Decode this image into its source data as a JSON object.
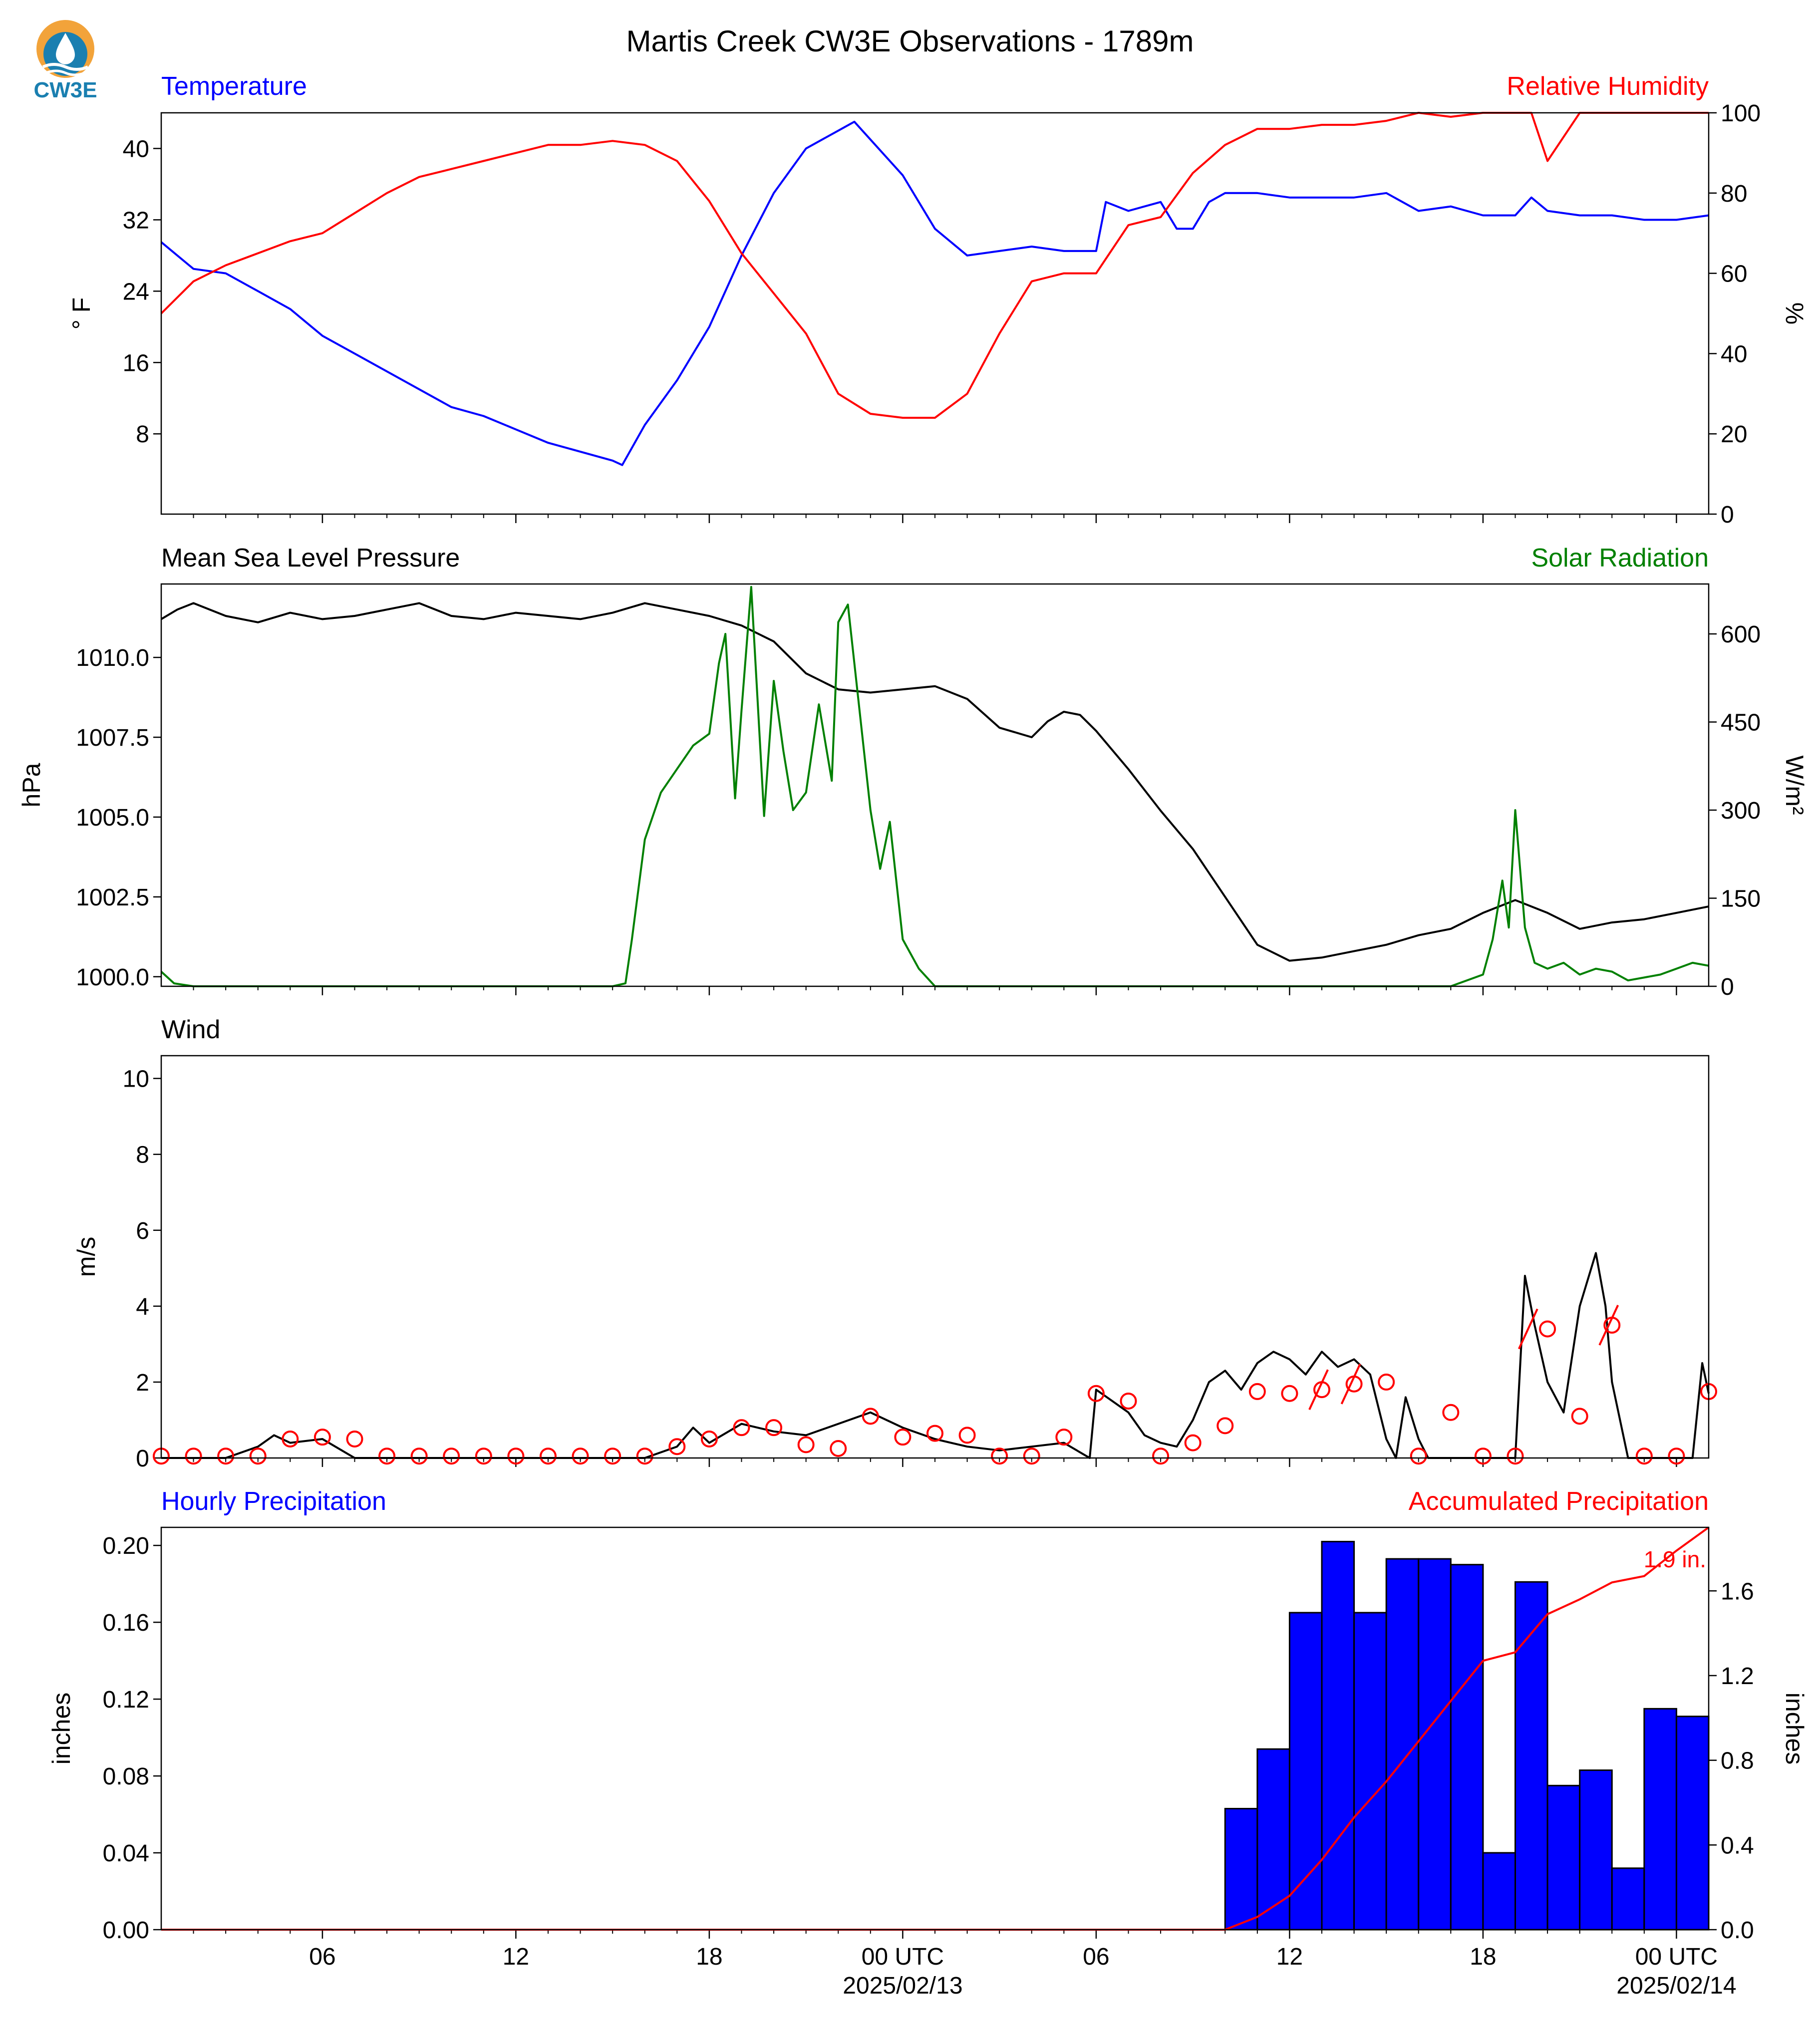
{
  "title": "Martis Creek CW3E Observations - 1789m",
  "logo": {
    "text": "CW3E",
    "icon": "water-drop-sun-icon",
    "colors": [
      "#f2a33a",
      "#1a7fb0"
    ]
  },
  "time_axis": {
    "start_hour": 0,
    "end_hour": 48,
    "tick_labels": [
      {
        "hour": 5,
        "label": "06"
      },
      {
        "hour": 11,
        "label": "12"
      },
      {
        "hour": 17,
        "label": "18"
      },
      {
        "hour": 23,
        "label": "00 UTC",
        "date": "2025/02/13"
      },
      {
        "hour": 29,
        "label": "06"
      },
      {
        "hour": 35,
        "label": "12"
      },
      {
        "hour": 41,
        "label": "18"
      },
      {
        "hour": 47,
        "label": "00 UTC",
        "date": "2025/02/14"
      }
    ]
  },
  "chart_data": [
    {
      "type": "line",
      "id": "temp_rh",
      "left_title": "Temperature",
      "right_title": "Relative Humidity",
      "ylabel_left": "° F",
      "ylabel_right": "%",
      "ylim_left": [
        -1,
        44
      ],
      "yticks_left": [
        8,
        16,
        24,
        32,
        40
      ],
      "ylim_right": [
        0,
        100
      ],
      "yticks_right": [
        0,
        20,
        40,
        60,
        80,
        100
      ],
      "series": [
        {
          "color": "#0000ff",
          "axis": "left",
          "x": [
            0,
            1,
            2,
            3,
            4,
            5,
            6,
            7,
            8,
            9,
            10,
            11,
            12,
            13,
            14,
            14.3,
            15,
            16,
            17,
            18,
            19,
            20,
            21,
            21.5,
            22,
            23,
            24,
            25,
            26,
            27,
            28,
            29,
            29.3,
            30,
            31,
            31.5,
            32,
            32.5,
            33,
            34,
            35,
            36,
            37,
            38,
            39,
            40,
            41,
            42,
            42.5,
            43,
            44,
            45,
            46,
            47,
            48
          ],
          "y": [
            29.5,
            26.5,
            26,
            24,
            22,
            19,
            17,
            15,
            13,
            11,
            10,
            8.5,
            7,
            6,
            5,
            4.5,
            9,
            14,
            20,
            28,
            35,
            40,
            42,
            43,
            41,
            37,
            31,
            28,
            28.5,
            29,
            28.5,
            28.5,
            34,
            33,
            34,
            31,
            31,
            34,
            35,
            35,
            34.5,
            34.5,
            34.5,
            35,
            33,
            33.5,
            32.5,
            32.5,
            34.5,
            33,
            32.5,
            32.5,
            32,
            32,
            32.5
          ]
        },
        {
          "color": "#ff0000",
          "axis": "right",
          "x": [
            0,
            1,
            2,
            3,
            4,
            5,
            6,
            7,
            8,
            9,
            10,
            11,
            12,
            13,
            14,
            15,
            16,
            17,
            18,
            19,
            20,
            21,
            22,
            23,
            24,
            25,
            26,
            27,
            28,
            29,
            30,
            31,
            32,
            33,
            34,
            35,
            36,
            37,
            38,
            39,
            40,
            41,
            42,
            42.5,
            43,
            44,
            45,
            46,
            47,
            48
          ],
          "y": [
            50,
            58,
            62,
            65,
            68,
            70,
            75,
            80,
            84,
            86,
            88,
            90,
            92,
            92,
            93,
            92,
            88,
            78,
            65,
            55,
            45,
            30,
            25,
            24,
            24,
            30,
            45,
            58,
            60,
            60,
            72,
            74,
            85,
            92,
            96,
            96,
            97,
            97,
            98,
            100,
            99,
            100,
            100,
            100,
            88,
            100,
            100,
            100,
            100,
            100
          ]
        }
      ]
    },
    {
      "type": "line",
      "id": "pressure_solar",
      "left_title": "Mean Sea Level Pressure",
      "right_title": "Solar Radiation",
      "ylabel_left": "hPa",
      "ylabel_right": "W/m²",
      "ylim_left": [
        999.7,
        1012.3
      ],
      "yticks_left": [
        1000.0,
        1002.5,
        1005.0,
        1007.5,
        1010.0
      ],
      "ylim_right": [
        0,
        685
      ],
      "yticks_right": [
        0,
        150,
        300,
        450,
        600
      ],
      "series": [
        {
          "color": "#000000",
          "axis": "left",
          "x": [
            0,
            0.5,
            1,
            2,
            3,
            4,
            5,
            6,
            7,
            8,
            9,
            10,
            11,
            12,
            13,
            14,
            15,
            16,
            17,
            18,
            19,
            20,
            21,
            22,
            23,
            24,
            25,
            26,
            27,
            27.5,
            28,
            28.5,
            29,
            30,
            31,
            32,
            33,
            34,
            35,
            36,
            37,
            38,
            39,
            40,
            41,
            42,
            43,
            44,
            45,
            46,
            47,
            48
          ],
          "y": [
            1011.2,
            1011.5,
            1011.7,
            1011.3,
            1011.1,
            1011.4,
            1011.2,
            1011.3,
            1011.5,
            1011.7,
            1011.3,
            1011.2,
            1011.4,
            1011.3,
            1011.2,
            1011.4,
            1011.7,
            1011.5,
            1011.3,
            1011.0,
            1010.5,
            1009.5,
            1009.0,
            1008.9,
            1009.0,
            1009.1,
            1008.7,
            1007.8,
            1007.5,
            1008.0,
            1008.3,
            1008.2,
            1007.7,
            1006.5,
            1005.2,
            1004.0,
            1002.5,
            1001.0,
            1000.5,
            1000.6,
            1000.8,
            1001.0,
            1001.3,
            1001.5,
            1002.0,
            1002.4,
            1002.0,
            1001.5,
            1001.7,
            1001.8,
            1002.0,
            1002.2
          ]
        },
        {
          "color": "#008000",
          "axis": "right",
          "x": [
            0,
            0.4,
            1,
            14,
            14.4,
            14.6,
            15,
            15.5,
            16,
            16.5,
            17,
            17.3,
            17.5,
            17.8,
            18,
            18.3,
            18.7,
            19,
            19.3,
            19.6,
            20,
            20.4,
            20.8,
            21,
            21.3,
            21.6,
            22,
            22.3,
            22.6,
            23,
            23.5,
            24,
            40,
            40.5,
            41,
            41.3,
            41.6,
            41.8,
            42,
            42.3,
            42.6,
            43,
            43.5,
            44,
            44.5,
            45,
            45.5,
            46,
            46.5,
            47,
            47.5,
            48
          ],
          "y": [
            25,
            5,
            0,
            0,
            5,
            80,
            250,
            330,
            370,
            410,
            430,
            550,
            600,
            320,
            470,
            680,
            290,
            520,
            400,
            300,
            330,
            480,
            350,
            620,
            650,
            500,
            300,
            200,
            280,
            80,
            30,
            0,
            0,
            10,
            20,
            80,
            180,
            100,
            300,
            100,
            40,
            30,
            40,
            20,
            30,
            25,
            10,
            15,
            20,
            30,
            40,
            35
          ]
        }
      ]
    },
    {
      "type": "line",
      "id": "wind",
      "left_title": "Wind",
      "ylabel_left": "m/s",
      "ylim_left": [
        0,
        10.6
      ],
      "yticks_left": [
        0,
        2,
        4,
        6,
        8,
        10
      ],
      "series": [
        {
          "color": "#000000",
          "axis": "left",
          "x": [
            0,
            2,
            3,
            3.5,
            4,
            5,
            6,
            15,
            16,
            16.5,
            17,
            18,
            19,
            20,
            21,
            22,
            23,
            24,
            25,
            26,
            27,
            28,
            28.8,
            29,
            29.5,
            30,
            30.5,
            31,
            31.5,
            32,
            32.5,
            33,
            33.5,
            34,
            34.5,
            35,
            35.5,
            36,
            36.5,
            37,
            37.5,
            38,
            38.3,
            38.6,
            39,
            39.3,
            39.6,
            40,
            41,
            42,
            42.3,
            42.6,
            43,
            43.5,
            44,
            44.5,
            44.8,
            45,
            45.5,
            46,
            46.5,
            47,
            47.5,
            47.8,
            48
          ],
          "y": [
            0,
            0,
            0.3,
            0.6,
            0.4,
            0.5,
            0,
            0,
            0.3,
            0.8,
            0.4,
            0.9,
            0.7,
            0.6,
            0.9,
            1.2,
            0.8,
            0.5,
            0.3,
            0.2,
            0.3,
            0.4,
            0,
            1.8,
            1.5,
            1.2,
            0.6,
            0.4,
            0.3,
            1.0,
            2.0,
            2.3,
            1.8,
            2.5,
            2.8,
            2.6,
            2.2,
            2.8,
            2.4,
            2.6,
            2.2,
            0.5,
            0,
            1.6,
            0.5,
            0,
            0,
            0,
            0,
            0,
            4.8,
            3.5,
            2.0,
            1.2,
            4.0,
            5.4,
            4.0,
            2.0,
            0,
            0,
            0,
            0,
            0,
            2.5,
            1.7
          ]
        }
      ],
      "direction_markers": {
        "color": "#ff0000",
        "x": [
          0,
          1,
          2,
          3,
          4,
          5,
          6,
          7,
          8,
          9,
          10,
          11,
          12,
          13,
          14,
          15,
          16,
          17,
          18,
          19,
          20,
          21,
          22,
          23,
          24,
          25,
          26,
          27,
          28,
          29,
          30,
          31,
          32,
          33,
          34,
          35,
          36,
          37,
          38,
          39,
          40,
          41,
          42,
          43,
          44,
          45,
          46,
          47,
          48
        ],
        "y": [
          0.05,
          0.05,
          0.05,
          0.05,
          0.5,
          0.55,
          0.5,
          0.05,
          0.05,
          0.05,
          0.05,
          0.05,
          0.05,
          0.05,
          0.05,
          0.05,
          0.3,
          0.5,
          0.8,
          0.8,
          0.35,
          0.25,
          1.1,
          0.55,
          0.65,
          0.6,
          0.05,
          0.05,
          0.55,
          1.7,
          1.5,
          0.05,
          0.4,
          0.85,
          1.75,
          1.7,
          1.8,
          1.95,
          2.0,
          0.05,
          1.2,
          0.05,
          0.05,
          3.4,
          1.1,
          3.5,
          0.05,
          0.05,
          1.75
        ],
        "barbs_at": [
          {
            "x": 36,
            "y": 1.8
          },
          {
            "x": 37,
            "y": 1.95
          },
          {
            "x": 42.5,
            "y": 3.4
          },
          {
            "x": 45,
            "y": 3.5
          }
        ]
      }
    },
    {
      "type": "bar",
      "id": "precip",
      "left_title": "Hourly Precipitation",
      "right_title": "Accumulated Precipitation",
      "ylabel_left": "inches",
      "ylabel_right": "inches",
      "ylim_left": [
        0,
        0.2094
      ],
      "yticks_left": [
        0.0,
        0.04,
        0.08,
        0.12,
        0.16,
        0.2
      ],
      "ylim_right": [
        0,
        1.9
      ],
      "yticks_right": [
        0.0,
        0.4,
        0.8,
        1.2,
        1.6
      ],
      "bar_color": "#0000ff",
      "bars": {
        "hour_start": [
          33,
          34,
          35,
          36,
          37,
          38,
          39,
          40,
          41,
          42,
          43,
          44,
          45,
          46,
          47
        ],
        "values": [
          0.063,
          0.094,
          0.165,
          0.202,
          0.165,
          0.193,
          0.193,
          0.19,
          0.04,
          0.181,
          0.075,
          0.083,
          0.032,
          0.115,
          0.111
        ]
      },
      "accumulated": {
        "color": "#ff0000",
        "x": [
          0,
          33,
          34,
          35,
          36,
          37,
          38,
          39,
          40,
          41,
          42,
          43,
          44,
          45,
          46,
          47,
          48
        ],
        "y": [
          0,
          0,
          0.06,
          0.16,
          0.33,
          0.53,
          0.7,
          0.89,
          1.08,
          1.27,
          1.31,
          1.49,
          1.56,
          1.64,
          1.67,
          1.79,
          1.9
        ]
      },
      "accumulated_label": "1.9 in."
    }
  ]
}
